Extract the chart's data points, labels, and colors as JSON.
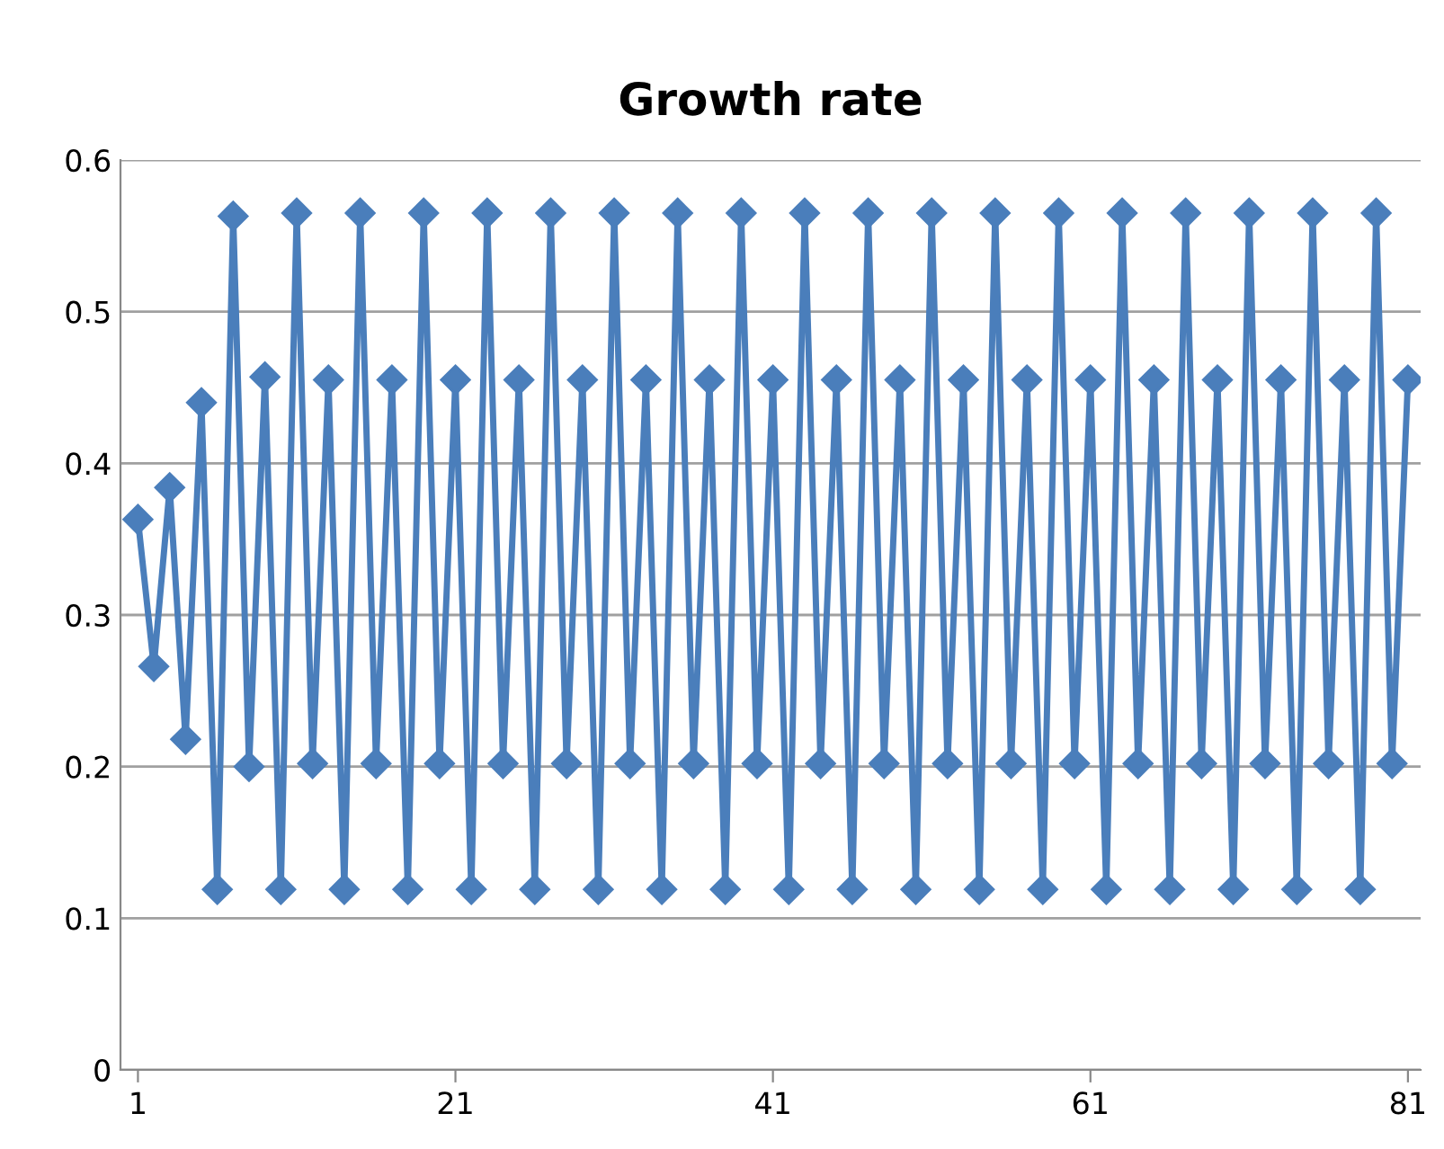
{
  "chart_data": {
    "type": "line",
    "title": "Growth rate",
    "categories": [
      "1",
      null,
      null,
      null,
      null,
      null,
      null,
      null,
      null,
      null,
      null,
      null,
      null,
      null,
      null,
      null,
      null,
      null,
      null,
      null,
      "21",
      null,
      null,
      null,
      null,
      null,
      null,
      null,
      null,
      null,
      null,
      null,
      null,
      null,
      null,
      null,
      null,
      null,
      null,
      null,
      "41",
      null,
      null,
      null,
      null,
      null,
      null,
      null,
      null,
      null,
      null,
      null,
      null,
      null,
      null,
      null,
      null,
      null,
      null,
      null,
      "61",
      null,
      null,
      null,
      null,
      null,
      null,
      null,
      null,
      null,
      null,
      null,
      null,
      null,
      null,
      null,
      null,
      null,
      null,
      null,
      "81"
    ],
    "series": [
      {
        "color": "#4a7ebb",
        "values": [
          0.363,
          0.266,
          0.384,
          0.218,
          0.44,
          0.119,
          0.563,
          0.2,
          0.457,
          0.119,
          0.565,
          0.202,
          0.455,
          0.119,
          0.565,
          0.202,
          0.455,
          0.119,
          0.565,
          0.202,
          0.455,
          0.119,
          0.565,
          0.202,
          0.455,
          0.119,
          0.565,
          0.202,
          0.455,
          0.119,
          0.565,
          0.202,
          0.455,
          0.119,
          0.565,
          0.202,
          0.455,
          0.119,
          0.565,
          0.202,
          0.455,
          0.119,
          0.565,
          0.202,
          0.455,
          0.119,
          0.565,
          0.202,
          0.455,
          0.119,
          0.565,
          0.202,
          0.455,
          0.119,
          0.565,
          0.202,
          0.455,
          0.119,
          0.565,
          0.202,
          0.455,
          0.119,
          0.565,
          0.202,
          0.455,
          0.119,
          0.565,
          0.202,
          0.455,
          0.119,
          0.565,
          0.202,
          0.455,
          0.119,
          0.565,
          0.202,
          0.455,
          0.119,
          0.565,
          0.202,
          0.455
        ]
      }
    ],
    "ylim": [
      0,
      0.6
    ],
    "yticks": [
      {
        "value": 0,
        "label": "0"
      },
      0.1,
      0.2,
      0.3,
      0.4,
      0.5,
      0.6
    ],
    "grid": "y",
    "marker": "diamond",
    "line_style": "solid",
    "legend": false
  }
}
